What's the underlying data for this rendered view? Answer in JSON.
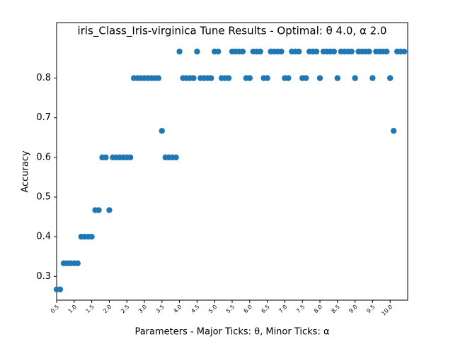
{
  "chart_data": {
    "type": "scatter",
    "title": "iris_Class_Iris-virginica Tune Results - Optimal: θ 4.0, α 2.0",
    "x_label": "Parameters - Major Ticks: θ, Minor Ticks: α",
    "y_label": "Accuracy",
    "color": "#1f77b4",
    "x": [
      0.5,
      0.6,
      0.7,
      0.8,
      0.9,
      1.0,
      1.1,
      1.2,
      1.3,
      1.4,
      1.5,
      1.6,
      1.7,
      1.8,
      1.9,
      2.0,
      2.1,
      2.2,
      2.3,
      2.4,
      2.5,
      2.6,
      2.7,
      2.8,
      2.9,
      3.0,
      3.1,
      3.2,
      3.3,
      3.4,
      3.5,
      3.6,
      3.7,
      3.8,
      3.9,
      4.0,
      4.1,
      4.2,
      4.3,
      4.4,
      4.5,
      4.6,
      4.7,
      4.8,
      4.9,
      5.0,
      5.1,
      5.2,
      5.3,
      5.4,
      5.5,
      5.6,
      5.7,
      5.8,
      5.9,
      6.0,
      6.1,
      6.2,
      6.3,
      6.4,
      6.5,
      6.6,
      6.7,
      6.8,
      6.9,
      7.0,
      7.1,
      7.2,
      7.3,
      7.4,
      7.5,
      7.6,
      7.7,
      7.8,
      7.9,
      8.0,
      8.1,
      8.2,
      8.3,
      8.4,
      8.5,
      8.6,
      8.7,
      8.8,
      8.9,
      9.0,
      9.1,
      9.2,
      9.3,
      9.4,
      9.5,
      9.6,
      9.7,
      9.8,
      9.9,
      10.0,
      10.1,
      10.2,
      10.3,
      10.4
    ],
    "values": [
      0.267,
      0.267,
      0.333,
      0.333,
      0.333,
      0.333,
      0.333,
      0.4,
      0.4,
      0.4,
      0.4,
      0.467,
      0.467,
      0.6,
      0.6,
      0.467,
      0.6,
      0.6,
      0.6,
      0.6,
      0.6,
      0.6,
      0.8,
      0.8,
      0.8,
      0.8,
      0.8,
      0.8,
      0.8,
      0.8,
      0.667,
      0.6,
      0.6,
      0.6,
      0.6,
      0.867,
      0.8,
      0.8,
      0.8,
      0.8,
      0.867,
      0.8,
      0.8,
      0.8,
      0.8,
      0.867,
      0.867,
      0.8,
      0.8,
      0.8,
      0.867,
      0.867,
      0.867,
      0.867,
      0.8,
      0.8,
      0.867,
      0.867,
      0.867,
      0.8,
      0.8,
      0.867,
      0.867,
      0.867,
      0.867,
      0.8,
      0.8,
      0.867,
      0.867,
      0.867,
      0.8,
      0.8,
      0.867,
      0.867,
      0.867,
      0.8,
      0.867,
      0.867,
      0.867,
      0.867,
      0.8,
      0.867,
      0.867,
      0.867,
      0.867,
      0.8,
      0.867,
      0.867,
      0.867,
      0.867,
      0.8,
      0.867,
      0.867,
      0.867,
      0.867,
      0.8,
      0.667,
      0.867,
      0.867,
      0.867
    ],
    "xlim": [
      0.5,
      10.5
    ],
    "ylim": [
      0.24,
      0.94
    ],
    "xticks": [
      0.5,
      {
        "value": 1.0,
        "label": "1.0"
      },
      1.5,
      {
        "value": 2.0,
        "label": "2.0"
      },
      2.5,
      {
        "value": 3.0,
        "label": "3.0"
      },
      3.5,
      {
        "value": 4.0,
        "label": "4.0"
      },
      4.5,
      {
        "value": 5.0,
        "label": "5.0"
      },
      5.5,
      {
        "value": 6.0,
        "label": "6.0"
      },
      6.5,
      {
        "value": 7.0,
        "label": "7.0"
      },
      7.5,
      {
        "value": 8.0,
        "label": "8.0"
      },
      8.5,
      {
        "value": 9.0,
        "label": "9.0"
      },
      9.5,
      {
        "value": 10.0,
        "label": "10.0"
      }
    ],
    "yticks": [
      0.3,
      0.4,
      0.5,
      0.6,
      0.7,
      0.8
    ],
    "grid": false
  }
}
